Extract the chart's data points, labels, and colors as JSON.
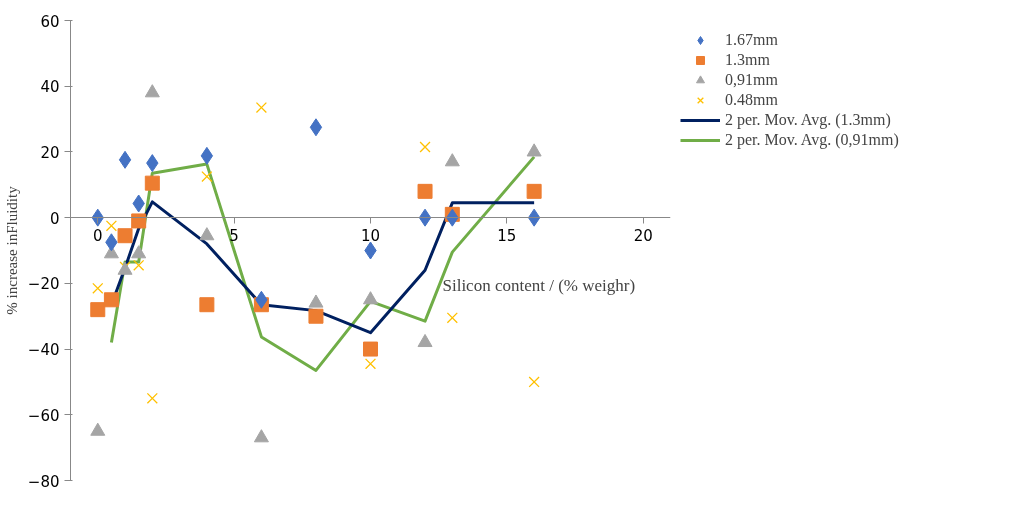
{
  "chart_data": {
    "type": "scatter",
    "xlabel": "Silicon content / (% weighr)",
    "ylabel": "% increase inFluidity",
    "x": [
      0,
      0.5,
      1,
      1.5,
      2,
      4,
      6,
      8,
      10,
      12,
      13,
      16
    ],
    "xlim": [
      -1,
      21
    ],
    "xticks": [
      0,
      5,
      10,
      15,
      20
    ],
    "ylim": [
      -80,
      60
    ],
    "yticks": [
      -80,
      -60,
      -40,
      -20,
      0,
      20,
      40,
      60
    ],
    "grid": false,
    "legend": "right",
    "series": [
      {
        "name": "1.67mm",
        "color": "#4472c4",
        "marker": "diamond",
        "values": [
          0,
          -7.5,
          17.6,
          4.3,
          16.6,
          18.8,
          -25,
          27.5,
          -10,
          0,
          0,
          0
        ]
      },
      {
        "name": "1.3mm",
        "color": "#ed7d31",
        "marker": "square",
        "values": [
          -28,
          -25,
          -5.5,
          -1,
          10.5,
          -26.5,
          -26.5,
          -30,
          -40,
          8,
          1,
          8
        ]
      },
      {
        "name": "0,91mm",
        "color": "#a5a5a5",
        "marker": "triangle",
        "values": [
          -65,
          -11,
          -16,
          -11,
          38,
          -5.5,
          -67,
          -26,
          -25,
          -38,
          17,
          20
        ]
      },
      {
        "name": "0.48mm",
        "color": "#ffc000",
        "marker": "cross",
        "values": [
          -21.5,
          -2.5,
          -15,
          -14.5,
          -55,
          12.5,
          33.5,
          null,
          -44.5,
          21.5,
          -30.5,
          -50
        ]
      },
      {
        "name": "2 per. Mov. Avg. (1.3mm)",
        "type": "line",
        "color": "#002060",
        "x": [
          0.5,
          1,
          1.5,
          2,
          4,
          6,
          8,
          10,
          12,
          13,
          16
        ],
        "values": [
          -26.5,
          -15.3,
          -3.3,
          4.8,
          -8,
          -26.5,
          -28.3,
          -35,
          -16,
          4.5,
          4.5
        ]
      },
      {
        "name": "2 per. Mov. Avg. (0,91mm)",
        "type": "line",
        "color": "#70ad47",
        "x": [
          0.5,
          1,
          1.5,
          2,
          4,
          6,
          8,
          10,
          12,
          13,
          16
        ],
        "values": [
          -38,
          -13.5,
          -13.5,
          13.5,
          16.3,
          -36.3,
          -46.5,
          -25.5,
          -31.5,
          -10.5,
          18.5
        ]
      }
    ]
  }
}
